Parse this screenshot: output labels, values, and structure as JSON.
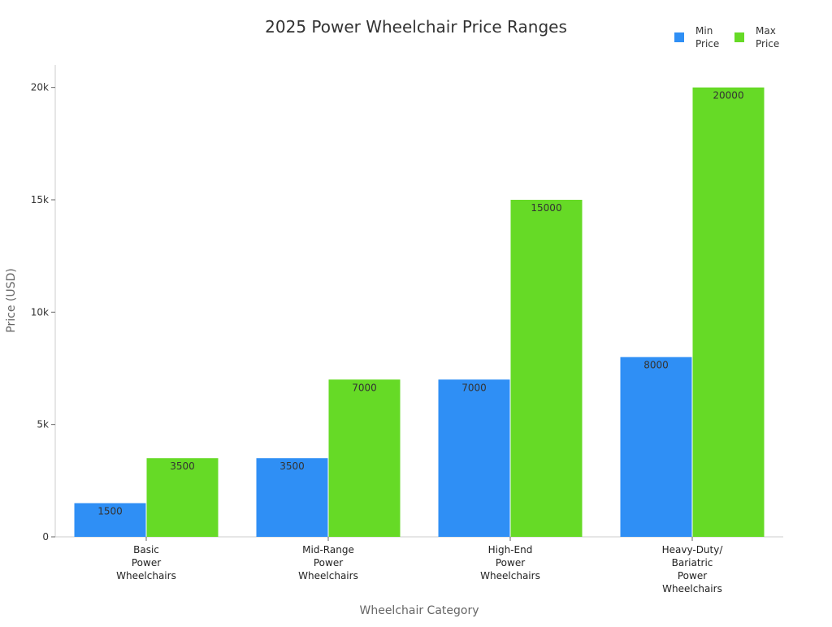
{
  "chart_data": {
    "type": "bar",
    "title": "2025 Power Wheelchair Price Ranges",
    "xlabel": "Wheelchair Category",
    "ylabel": "Price (USD)",
    "ylim": [
      0,
      21000
    ],
    "yticks": [
      0,
      5000,
      10000,
      15000,
      20000
    ],
    "ytick_labels": [
      "0",
      "5k",
      "10k",
      "15k",
      "20k"
    ],
    "categories": [
      [
        "Basic",
        "Power",
        "Wheelchairs"
      ],
      [
        "Mid-Range",
        "Power",
        "Wheelchairs"
      ],
      [
        "High-End",
        "Power",
        "Wheelchairs"
      ],
      [
        "Heavy-Duty/",
        "Bariatric",
        "Power",
        "Wheelchairs"
      ]
    ],
    "series": [
      {
        "name": [
          "Min",
          "Price"
        ],
        "color": "#2f8ff5",
        "values": [
          1500,
          3500,
          7000,
          8000
        ]
      },
      {
        "name": [
          "Max",
          "Price"
        ],
        "color": "#66da26",
        "values": [
          3500,
          7000,
          15000,
          20000
        ]
      }
    ],
    "legend_position": "top-right",
    "grid": false
  }
}
